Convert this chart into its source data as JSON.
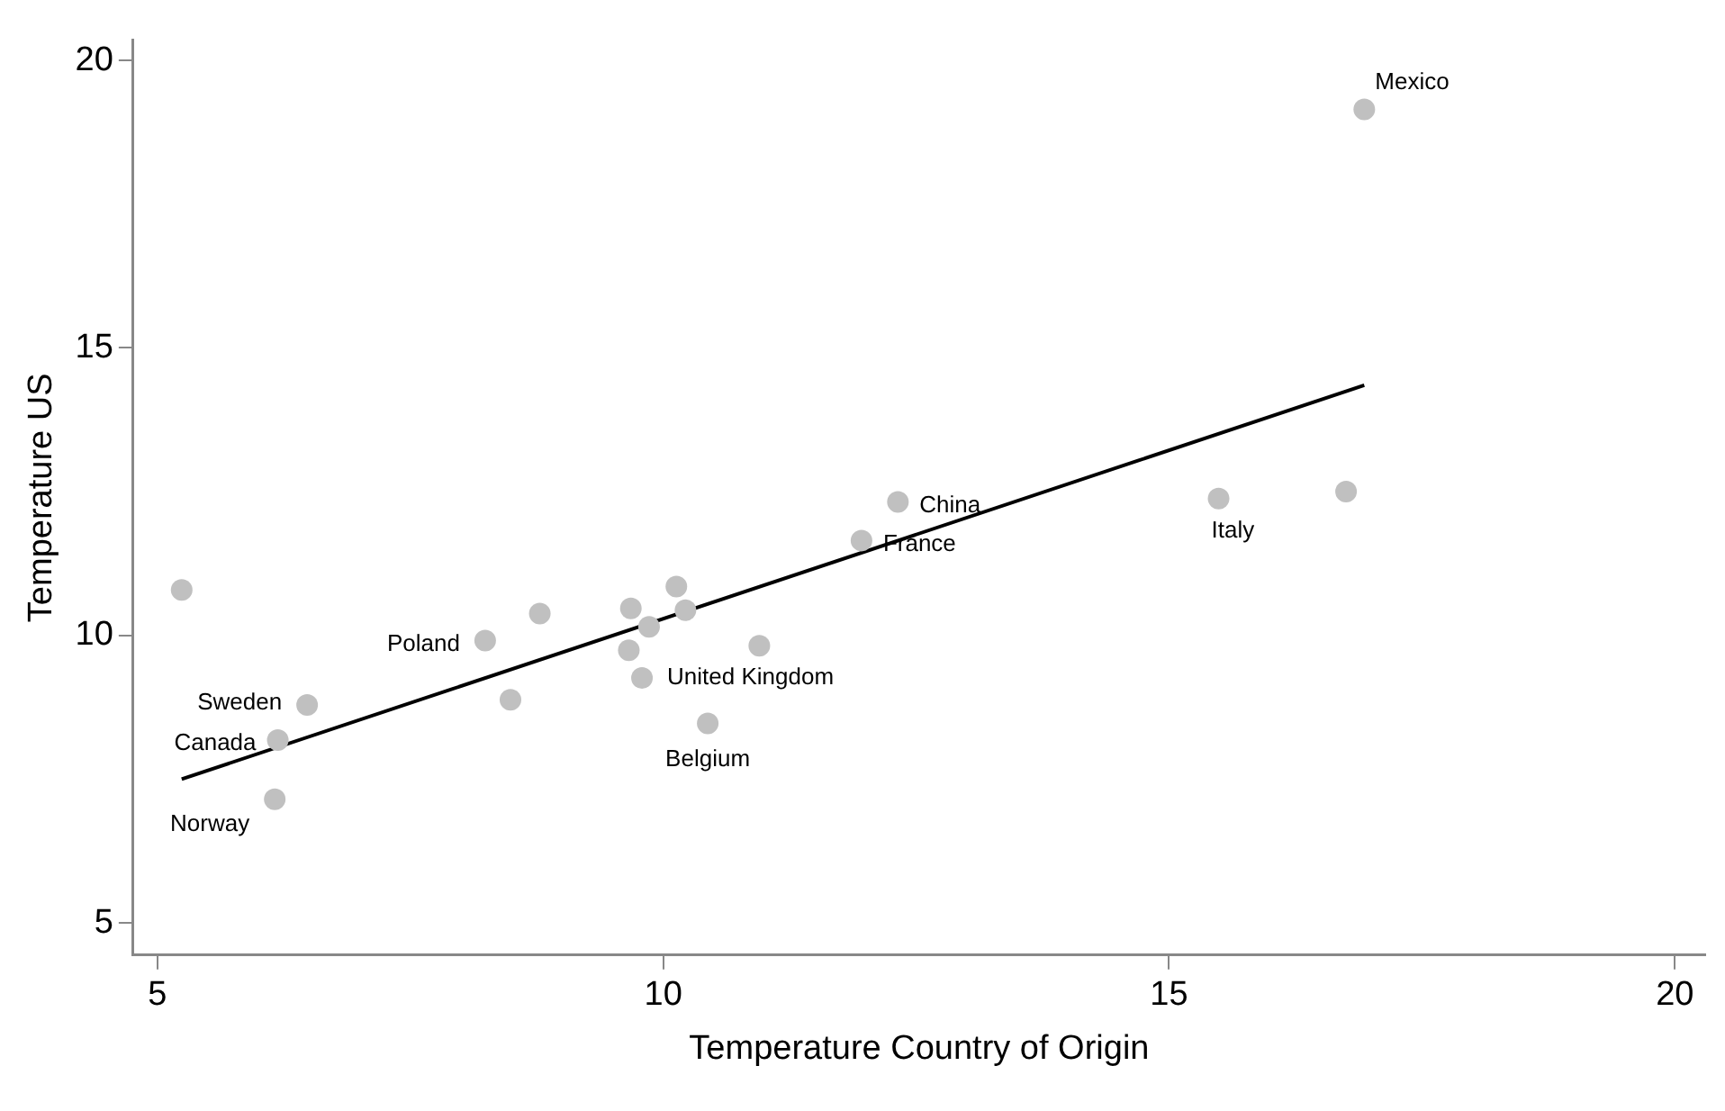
{
  "chart_data": {
    "type": "scatter",
    "xlabel": "Temperature Country of Origin",
    "ylabel": "Temperature US",
    "xlim": [
      4.76,
      20.3
    ],
    "ylim": [
      4.44,
      20.35
    ],
    "xticks": [
      5,
      10,
      15,
      20
    ],
    "yticks": [
      5,
      10,
      15,
      20
    ],
    "grid": false,
    "legend": false,
    "marker": "circle",
    "series": [
      {
        "type": "scatter",
        "color": "#c0c0c0",
        "x": [
          5.24,
          6.16,
          6.19,
          6.48,
          8.24,
          8.78,
          8.49,
          9.68,
          9.66,
          9.86,
          10.13,
          10.22,
          9.79,
          10.95,
          10.44,
          11.96,
          12.32,
          15.49,
          16.75,
          16.93
        ],
        "values": [
          10.79,
          7.15,
          8.18,
          8.79,
          9.91,
          10.38,
          8.88,
          10.47,
          9.74,
          10.15,
          10.85,
          10.44,
          9.26,
          9.82,
          8.47,
          11.65,
          12.32,
          12.38,
          12.5,
          19.15
        ]
      },
      {
        "type": "line",
        "color": "#000000",
        "x": [
          5.24,
          16.93
        ],
        "values": [
          7.5,
          14.35
        ],
        "line_style": "solid",
        "marker": "none"
      }
    ],
    "annotations": [
      {
        "text": "Norway",
        "x": 6.16,
        "y": 7.15
      },
      {
        "text": "Canada",
        "x": 6.19,
        "y": 8.18
      },
      {
        "text": "Sweden",
        "x": 6.48,
        "y": 8.79
      },
      {
        "text": "Poland",
        "x": 8.24,
        "y": 9.91
      },
      {
        "text": "United Kingdom",
        "x": 9.79,
        "y": 9.26
      },
      {
        "text": "Belgium",
        "x": 10.44,
        "y": 8.47
      },
      {
        "text": "France",
        "x": 11.96,
        "y": 11.65
      },
      {
        "text": "China",
        "x": 12.32,
        "y": 12.32
      },
      {
        "text": "Italy",
        "x": 15.49,
        "y": 12.38
      },
      {
        "text": "Mexico",
        "x": 16.93,
        "y": 19.15
      }
    ]
  }
}
